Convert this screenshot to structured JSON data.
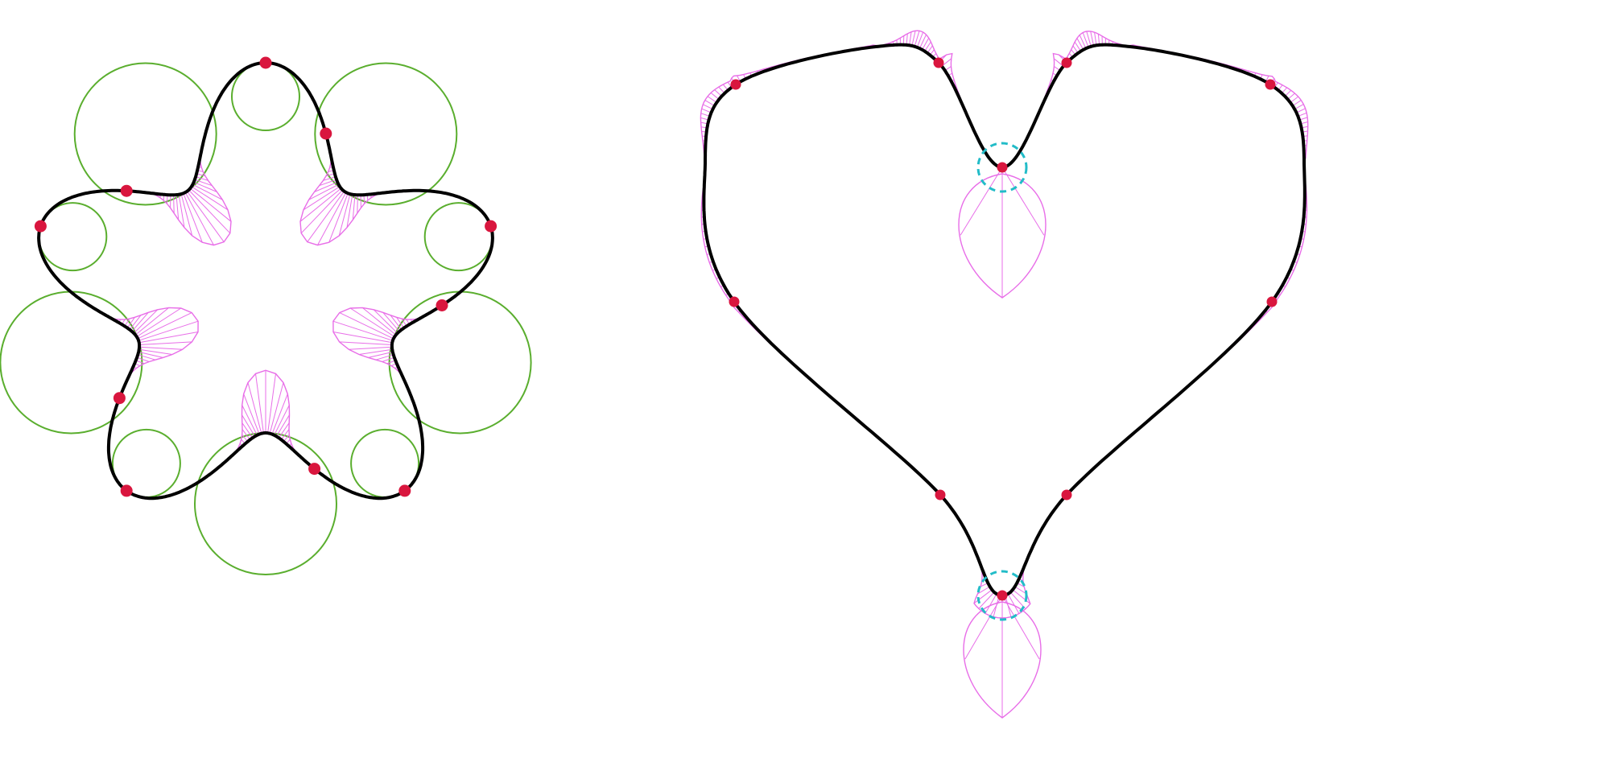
{
  "colors": {
    "background": "#ffffff",
    "curve": "#000000",
    "curvature_comb": "#e86ee8",
    "osculating_circle": "#5aae2e",
    "control_point": "#d9163e",
    "cusp_marker": "#22bcc8"
  },
  "figures": [
    {
      "kind": "flower-curve",
      "petals": 5,
      "control_points": 10,
      "osculating_circles": 10
    },
    {
      "kind": "heart-curve",
      "control_points": 10,
      "cusp_markers": 2
    }
  ]
}
